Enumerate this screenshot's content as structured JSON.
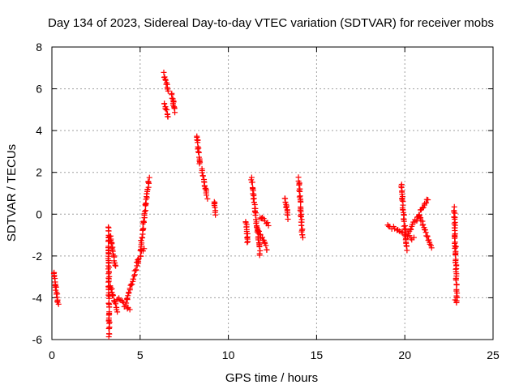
{
  "chart_data": {
    "type": "scatter",
    "title": "Day 134 of 2023, Sidereal Day-to-day VTEC variation (SDTVAR) for receiver mobs",
    "xlabel": "GPS time / hours",
    "ylabel": "SDTVAR / TECUs",
    "xlim": [
      0,
      25
    ],
    "ylim": [
      -6,
      8
    ],
    "xticks": [
      0,
      5,
      10,
      15,
      20,
      25
    ],
    "yticks": [
      -6,
      -4,
      -2,
      0,
      2,
      4,
      6,
      8
    ],
    "grid": true,
    "marker": "plus",
    "color": "#ff0000",
    "segments": [
      {
        "x": [
          0.1,
          0.35
        ],
        "y": [
          -2.8,
          -4.3
        ]
      },
      {
        "x": [
          3.2,
          3.25
        ],
        "y": [
          -0.6,
          -5.8
        ]
      },
      {
        "x": [
          3.3,
          3.6
        ],
        "y": [
          -1.0,
          -2.5
        ]
      },
      {
        "x": [
          3.3,
          3.7
        ],
        "y": [
          -3.4,
          -4.7
        ]
      },
      {
        "x": [
          3.7,
          4.4
        ],
        "y": [
          -4.0,
          -4.6
        ]
      },
      {
        "x": [
          4.2,
          4.9
        ],
        "y": [
          -4.2,
          -2.3
        ]
      },
      {
        "x": [
          4.8,
          5.2
        ],
        "y": [
          -2.3,
          -1.7
        ]
      },
      {
        "x": [
          5.0,
          5.5
        ],
        "y": [
          -1.8,
          1.7
        ]
      },
      {
        "x": [
          6.35,
          6.6
        ],
        "y": [
          6.7,
          5.9
        ]
      },
      {
        "x": [
          6.35,
          6.6
        ],
        "y": [
          5.3,
          4.6
        ]
      },
      {
        "x": [
          6.8,
          6.95
        ],
        "y": [
          5.8,
          4.9
        ]
      },
      {
        "x": [
          8.2,
          8.4
        ],
        "y": [
          3.8,
          2.4
        ]
      },
      {
        "x": [
          8.5,
          8.8
        ],
        "y": [
          2.1,
          0.8
        ]
      },
      {
        "x": [
          9.2,
          9.25
        ],
        "y": [
          0.6,
          0.0
        ]
      },
      {
        "x": [
          11.0,
          11.1
        ],
        "y": [
          -0.3,
          -1.4
        ]
      },
      {
        "x": [
          11.3,
          11.8
        ],
        "y": [
          1.7,
          -1.9
        ]
      },
      {
        "x": [
          11.6,
          12.2
        ],
        "y": [
          -0.6,
          -1.7
        ]
      },
      {
        "x": [
          11.8,
          12.3
        ],
        "y": [
          -0.1,
          -0.5
        ]
      },
      {
        "x": [
          13.2,
          13.4
        ],
        "y": [
          0.8,
          -0.2
        ]
      },
      {
        "x": [
          14.0,
          14.2
        ],
        "y": [
          1.7,
          -1.1
        ]
      },
      {
        "x": [
          19.0,
          20.5
        ],
        "y": [
          -0.5,
          -1.2
        ]
      },
      {
        "x": [
          19.8,
          20.1
        ],
        "y": [
          1.4,
          -1.7
        ]
      },
      {
        "x": [
          20.2,
          21.3
        ],
        "y": [
          -0.9,
          0.7
        ]
      },
      {
        "x": [
          20.8,
          21.5
        ],
        "y": [
          0.0,
          -1.6
        ]
      },
      {
        "x": [
          22.8,
          22.95
        ],
        "y": [
          0.3,
          -4.3
        ]
      }
    ],
    "points": [
      {
        "x": 0.2,
        "y": -3.5
      },
      {
        "x": 6.9,
        "y": 5.4
      },
      {
        "x": 13.3,
        "y": 0.4
      },
      {
        "x": 14.1,
        "y": 0.2
      },
      {
        "x": 21.0,
        "y": 0.3
      },
      {
        "x": 22.9,
        "y": -1.55
      },
      {
        "x": 22.85,
        "y": -4.1
      }
    ]
  }
}
